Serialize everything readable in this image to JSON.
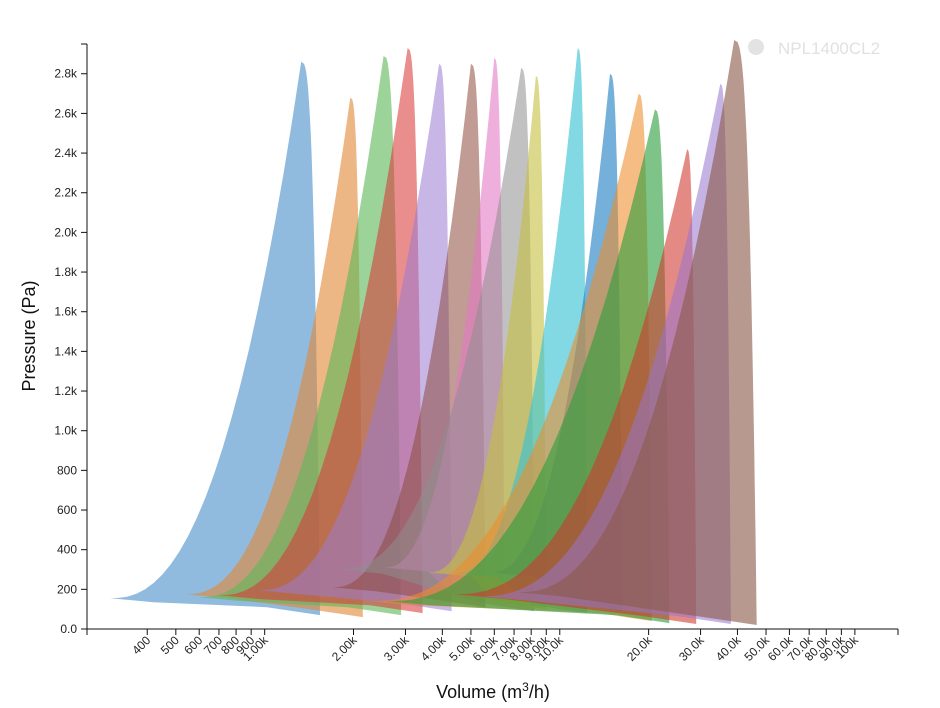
{
  "chart_data": {
    "type": "area",
    "title": "",
    "xlabel": "Volume (m³/h)",
    "ylabel": "Pressure (Pa)",
    "x_scale": "log",
    "xlim": [
      250,
      140000
    ],
    "ylim": [
      0,
      2950
    ],
    "x_ticks": [
      {
        "value": 400,
        "label": "400"
      },
      {
        "value": 500,
        "label": "500"
      },
      {
        "value": 600,
        "label": "600"
      },
      {
        "value": 700,
        "label": "700"
      },
      {
        "value": 800,
        "label": "800"
      },
      {
        "value": 900,
        "label": "900"
      },
      {
        "value": 1000,
        "label": "1.00k"
      },
      {
        "value": 2000,
        "label": "2.00k"
      },
      {
        "value": 3000,
        "label": "3.00k"
      },
      {
        "value": 4000,
        "label": "4.00k"
      },
      {
        "value": 5000,
        "label": "5.00k"
      },
      {
        "value": 6000,
        "label": "6.00k"
      },
      {
        "value": 7000,
        "label": "7.00k"
      },
      {
        "value": 8000,
        "label": "8.00k"
      },
      {
        "value": 9000,
        "label": "9.00k"
      },
      {
        "value": 10000,
        "label": "10.0k"
      },
      {
        "value": 20000,
        "label": "20.0k"
      },
      {
        "value": 30000,
        "label": "30.0k"
      },
      {
        "value": 40000,
        "label": "40.0k"
      },
      {
        "value": 50000,
        "label": "50.0k"
      },
      {
        "value": 60000,
        "label": "60.0k"
      },
      {
        "value": 70000,
        "label": "70.0k"
      },
      {
        "value": 80000,
        "label": "80.0k"
      },
      {
        "value": 90000,
        "label": "90.0k"
      },
      {
        "value": 100000,
        "label": "100k"
      }
    ],
    "y_ticks": [
      {
        "value": 0,
        "label": "0.0"
      },
      {
        "value": 200,
        "label": "200"
      },
      {
        "value": 400,
        "label": "400"
      },
      {
        "value": 600,
        "label": "600"
      },
      {
        "value": 800,
        "label": "800"
      },
      {
        "value": 1000,
        "label": "1.0k"
      },
      {
        "value": 1200,
        "label": "1.2k"
      },
      {
        "value": 1400,
        "label": "1.4k"
      },
      {
        "value": 1600,
        "label": "1.6k"
      },
      {
        "value": 1800,
        "label": "1.8k"
      },
      {
        "value": 2000,
        "label": "2.0k"
      },
      {
        "value": 2200,
        "label": "2.2k"
      },
      {
        "value": 2400,
        "label": "2.4k"
      },
      {
        "value": 2600,
        "label": "2.6k"
      },
      {
        "value": 2800,
        "label": "2.8k"
      }
    ],
    "grid": false,
    "legend_position": "top-right",
    "legend": [
      {
        "label": "NPL1400CL2",
        "color": "#c0a099",
        "dimmed": true
      }
    ],
    "series": [
      {
        "color": "#5b9bd0",
        "qmin": 300,
        "qknee": 1330,
        "qmax": 1540,
        "pmax": 2860,
        "pend": 70,
        "pbase": 155,
        "expo": 0.6,
        "opacity": 0.68
      },
      {
        "color": "#e0893a",
        "qmin": 540,
        "qknee": 1950,
        "qmax": 2150,
        "pmax": 2680,
        "pend": 60,
        "pbase": 175,
        "expo": 0.58,
        "opacity": 0.62
      },
      {
        "color": "#5fb85a",
        "qmin": 600,
        "qknee": 2530,
        "qmax": 2900,
        "pmax": 2890,
        "pend": 70,
        "pbase": 160,
        "expo": 0.6,
        "opacity": 0.62
      },
      {
        "color": "#d93b3b",
        "qmin": 700,
        "qknee": 3050,
        "qmax": 3430,
        "pmax": 2930,
        "pend": 80,
        "pbase": 170,
        "expo": 0.62,
        "opacity": 0.58
      },
      {
        "color": "#9b7bd2",
        "qmin": 950,
        "qknee": 3900,
        "qmax": 4300,
        "pmax": 2850,
        "pend": 90,
        "pbase": 195,
        "expo": 0.6,
        "opacity": 0.55
      },
      {
        "color": "#8c4a3d",
        "qmin": 1700,
        "qknee": 5000,
        "qmax": 5600,
        "pmax": 2850,
        "pend": 110,
        "pbase": 210,
        "expo": 0.6,
        "opacity": 0.55
      },
      {
        "color": "#e57ac4",
        "qmin": 2550,
        "qknee": 6000,
        "qmax": 6500,
        "pmax": 2880,
        "pend": 140,
        "pbase": 310,
        "expo": 0.6,
        "opacity": 0.6
      },
      {
        "color": "#8e8e8e",
        "qmin": 1780,
        "qknee": 7400,
        "qmax": 8200,
        "pmax": 2830,
        "pend": 90,
        "pbase": 300,
        "expo": 0.6,
        "opacity": 0.55
      },
      {
        "color": "#c5bf3f",
        "qmin": 3600,
        "qknee": 8300,
        "qmax": 9000,
        "pmax": 2790,
        "pend": 100,
        "pbase": 285,
        "expo": 0.6,
        "opacity": 0.6
      },
      {
        "color": "#35c2d4",
        "qmin": 4400,
        "qknee": 11500,
        "qmax": 12400,
        "pmax": 2930,
        "pend": 80,
        "pbase": 280,
        "expo": 0.58,
        "opacity": 0.62
      },
      {
        "color": "#1f7fc4",
        "qmin": 5800,
        "qknee": 14800,
        "qmax": 16300,
        "pmax": 2800,
        "pend": 90,
        "pbase": 285,
        "expo": 0.6,
        "opacity": 0.62
      },
      {
        "color": "#ee8c2b",
        "qmin": 2300,
        "qknee": 18500,
        "qmax": 20500,
        "pmax": 2700,
        "pend": 40,
        "pbase": 140,
        "expo": 0.6,
        "opacity": 0.58
      },
      {
        "color": "#2e9e3d",
        "qmin": 2600,
        "qknee": 21000,
        "qmax": 23500,
        "pmax": 2620,
        "pend": 30,
        "pbase": 140,
        "expo": 0.6,
        "opacity": 0.62
      },
      {
        "color": "#d0352d",
        "qmin": 4400,
        "qknee": 27000,
        "qmax": 29000,
        "pmax": 2420,
        "pend": 25,
        "pbase": 175,
        "expo": 0.6,
        "opacity": 0.58
      },
      {
        "color": "#9575cd",
        "qmin": 5400,
        "qknee": 35000,
        "qmax": 38000,
        "pmax": 2750,
        "pend": 25,
        "pbase": 165,
        "expo": 0.6,
        "opacity": 0.55
      },
      {
        "color": "#8d5a4a",
        "qmin": 7200,
        "qknee": 39000,
        "qmax": 46500,
        "pmax": 2970,
        "pend": 20,
        "pbase": 185,
        "expo": 0.6,
        "opacity": 0.62
      }
    ]
  }
}
